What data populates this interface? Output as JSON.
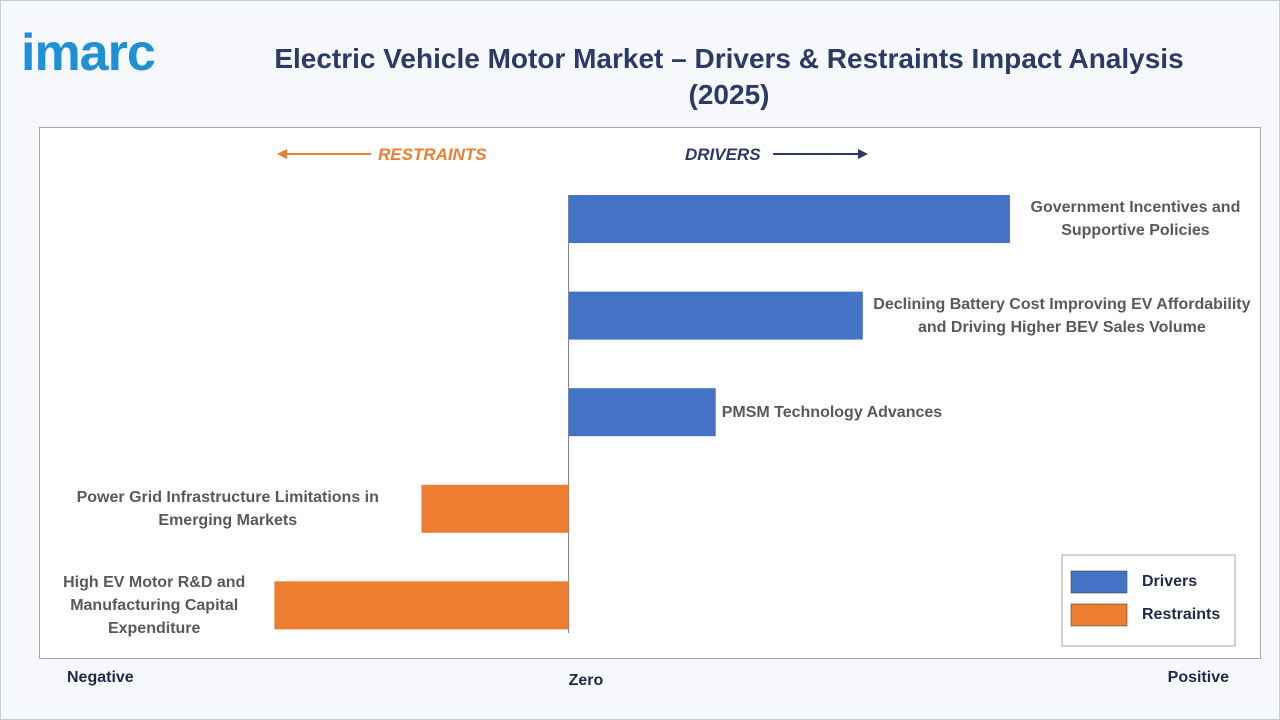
{
  "logo": "imarc",
  "chart_data": {
    "type": "bar",
    "orientation": "horizontal",
    "title": "Electric Vehicle Motor Market – Drivers & Restraints Impact Analysis (2025)",
    "direction_labels": [
      "RESTRAINTS",
      "DRIVERS"
    ],
    "x_axis_labels": [
      "Negative",
      "Zero",
      "Positive"
    ],
    "categories": [
      "Government Incentives and Supportive Policies",
      "Declining Battery Cost Improving EV Affordability and Driving Higher BEV Sales Volume",
      "PMSM Technology Advances",
      "Power Grid Infrastructure Limitations in Emerging Markets",
      "High EV Motor R&D and Manufacturing Capital Expenditure"
    ],
    "series": [
      {
        "name": "Drivers",
        "color": "#4472c4",
        "values": [
          3,
          2,
          1,
          null,
          null
        ]
      },
      {
        "name": "Restraints",
        "color": "#ed7d31",
        "values": [
          null,
          null,
          null,
          -1,
          -2
        ]
      }
    ],
    "xlim": [
      -3.6,
      4.7
    ],
    "legend": "lower right"
  }
}
